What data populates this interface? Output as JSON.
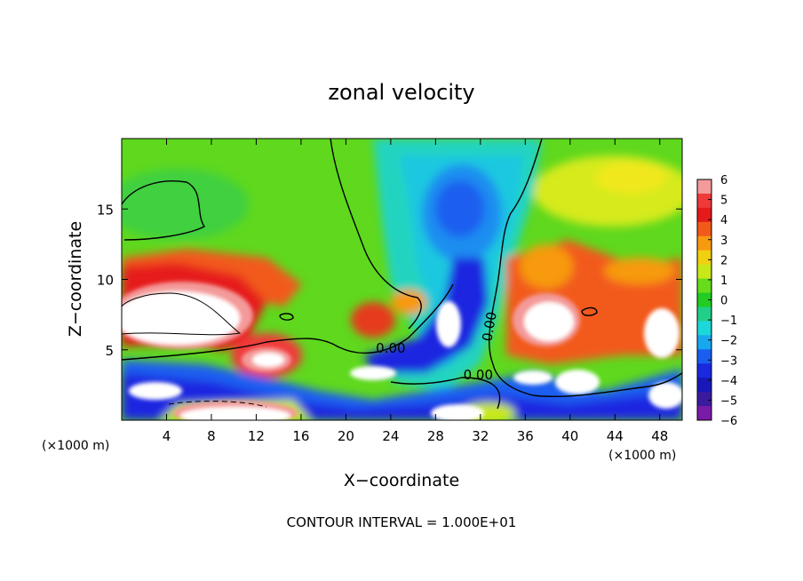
{
  "chart_data": {
    "type": "heatmap",
    "title": "zonal velocity",
    "xlabel": "X−coordinate",
    "ylabel": "Z−coordinate",
    "x_unit_left": "(×1000 m)",
    "x_unit_right": "(×1000 m)",
    "footer": "CONTOUR INTERVAL = 1.000E+01",
    "xlim": [
      0,
      50
    ],
    "ylim": [
      0,
      20
    ],
    "x_ticks": [
      4,
      8,
      12,
      16,
      20,
      24,
      28,
      32,
      36,
      40,
      44,
      48
    ],
    "y_ticks": [
      5,
      10,
      15
    ],
    "contour_labels": [
      {
        "text": "0.00",
        "x": 24.0,
        "y": 4.8
      },
      {
        "text": "0.00",
        "x": 31.8,
        "y": 2.9
      },
      {
        "text": "0.00",
        "x": 33.2,
        "y": 6.6
      }
    ],
    "colorbar": {
      "ticks": [
        6,
        5,
        4,
        3,
        2,
        1,
        0,
        "−1",
        "−2",
        "−3",
        "−4",
        "−5",
        "−6"
      ],
      "colors": [
        "#f49a9a",
        "#f03a3a",
        "#e61a1a",
        "#f25a1a",
        "#f79a10",
        "#f0d010",
        "#c8e81a",
        "#66dd1a",
        "#22cc22",
        "#20d088",
        "#1cd8d8",
        "#18a8f0",
        "#1a5ef0",
        "#1a28e0",
        "#1818b8",
        "#3a1a9e",
        "#7a1aa8"
      ]
    }
  }
}
